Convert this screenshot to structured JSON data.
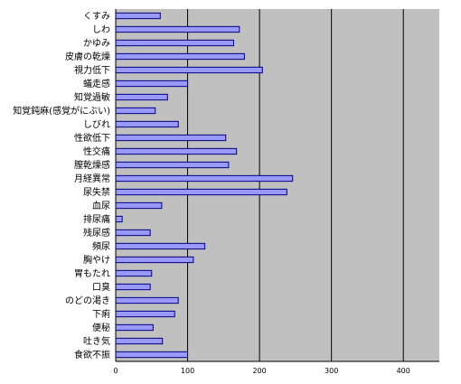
{
  "chart_data": {
    "type": "bar",
    "orientation": "horizontal",
    "title": "",
    "xlabel": "",
    "ylabel": "",
    "xlim": [
      0,
      450
    ],
    "ticks": [
      0,
      100,
      200,
      300,
      400
    ],
    "tick_labels": [
      "0",
      "100",
      "200",
      "300",
      "400"
    ],
    "grid": "vertical",
    "legend": "none",
    "colors": {
      "plot_bg": "#c0c0c0",
      "bar_fill": "#9999ff",
      "bar_stroke": "#000080",
      "grid": "#000000"
    },
    "categories": [
      "くすみ",
      "しわ",
      "かゆみ",
      "皮膚の乾燥",
      "視力低下",
      "蟻走感",
      "知覚過敏",
      "知覚鈍麻(感覚がにぶい)",
      "しびれ",
      "性欲低下",
      "性交痛",
      "膣乾燥感",
      "月経異常",
      "尿失禁",
      "血尿",
      "排尿痛",
      "残尿感",
      "頻尿",
      "胸やけ",
      "胃もたれ",
      "口臭",
      "のどの渇き",
      "下痢",
      "便秘",
      "吐き気",
      "食欲不振"
    ],
    "values": [
      62,
      172,
      164,
      179,
      204,
      100,
      72,
      55,
      87,
      153,
      168,
      157,
      246,
      238,
      64,
      9,
      48,
      124,
      108,
      50,
      48,
      87,
      82,
      52,
      65,
      100
    ]
  }
}
